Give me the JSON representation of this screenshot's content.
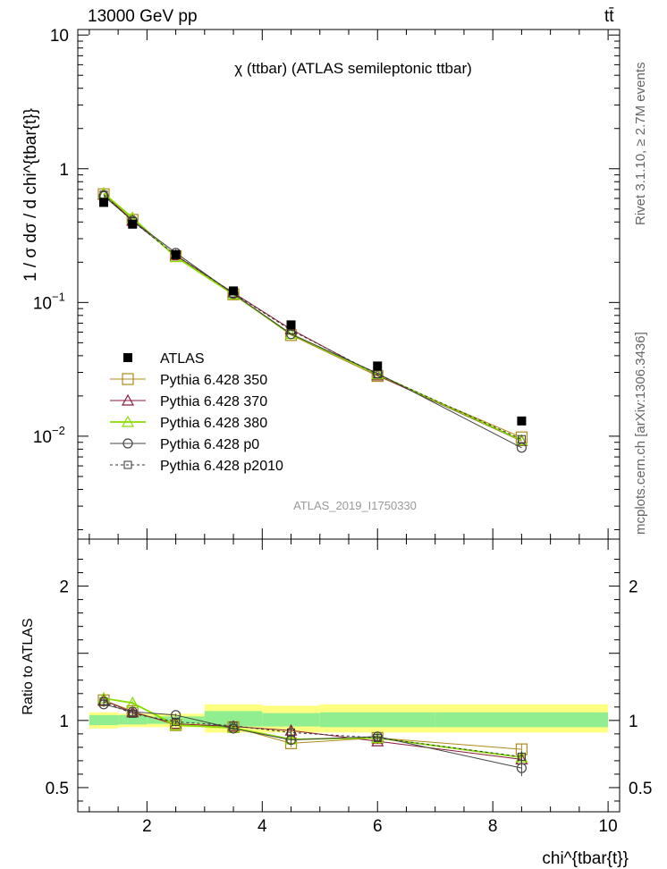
{
  "header": {
    "energy_label": "13000 GeV pp",
    "process_label": "tt̄"
  },
  "side_labels": {
    "rivet": "Rivet 3.1.10, ≥ 2.7M events",
    "mcplots": "mcplots.cern.ch [arXiv:1306.3436]"
  },
  "chart_data": [
    {
      "type": "scatter",
      "title": "χ (ttbar) (ATLAS semileptonic ttbar)",
      "watermark": "ATLAS_2019_I1750330",
      "ylabel": "1 / σ dσ / d chi^{tbar{t}}",
      "yscale": "log",
      "ylim": [
        0.0017,
        11
      ],
      "xlim": [
        0.8,
        10.2
      ],
      "yticks": [
        {
          "v": 10,
          "label": "10"
        },
        {
          "v": 1,
          "label": "1"
        },
        {
          "v": 0.1,
          "label": "10",
          "sup": "−1"
        },
        {
          "v": 0.01,
          "label": "10",
          "sup": "−2"
        }
      ],
      "legend_position": "middle-left",
      "x": [
        1.25,
        1.75,
        2.5,
        3.5,
        4.5,
        6.0,
        8.5
      ],
      "series": [
        {
          "name": "ATLAS",
          "color": "#000000",
          "marker": "square-filled",
          "values": [
            0.56,
            0.385,
            0.228,
            0.122,
            0.068,
            0.0335,
            0.013
          ]
        },
        {
          "name": "Pythia 6.428 350",
          "color": "#b08a1a",
          "marker": "square-open",
          "values": [
            0.645,
            0.415,
            0.222,
            0.115,
            0.057,
            0.0282,
            0.0098
          ]
        },
        {
          "name": "Pythia 6.428 370",
          "color": "#8b1a3a",
          "marker": "triangle-open",
          "values": [
            0.648,
            0.408,
            0.225,
            0.118,
            0.063,
            0.0285,
            0.0092
          ]
        },
        {
          "name": "Pythia 6.428 380",
          "color": "#88dd00",
          "marker": "triangle-open",
          "values": [
            0.655,
            0.43,
            0.219,
            0.115,
            0.058,
            0.029,
            0.0093
          ]
        },
        {
          "name": "Pythia 6.428 p0",
          "color": "#444444",
          "marker": "circle-open",
          "values": [
            0.625,
            0.41,
            0.235,
            0.116,
            0.058,
            0.0295,
            0.0082
          ]
        },
        {
          "name": "Pythia 6.428 p2010",
          "color": "#333333",
          "marker": "square-small-dashed",
          "values": [
            0.64,
            0.405,
            0.226,
            0.117,
            0.062,
            0.029,
            0.0095
          ]
        }
      ]
    },
    {
      "type": "scatter",
      "ylabel": "Ratio to ATLAS",
      "xlabel": "chi^{tbar{t}}",
      "ylim": [
        0.32,
        2.35
      ],
      "xlim": [
        0.8,
        10.2
      ],
      "yticks": [
        {
          "v": 2,
          "label": "2"
        },
        {
          "v": 1,
          "label": "1"
        },
        {
          "v": 0.5,
          "label": "0.5"
        }
      ],
      "xticks": [
        {
          "v": 2,
          "label": "2"
        },
        {
          "v": 4,
          "label": "4"
        },
        {
          "v": 6,
          "label": "6"
        },
        {
          "v": 8,
          "label": "8"
        },
        {
          "v": 10,
          "label": "10"
        }
      ],
      "uncertainty_bands": [
        {
          "x0": 1.0,
          "x1": 1.5,
          "stat": [
            0.965,
            1.04
          ],
          "total": [
            0.94,
            1.06
          ]
        },
        {
          "x0": 1.5,
          "x1": 2.0,
          "stat": [
            0.97,
            1.04
          ],
          "total": [
            0.95,
            1.05
          ]
        },
        {
          "x0": 2.0,
          "x1": 3.0,
          "stat": [
            0.975,
            1.03
          ],
          "total": [
            0.95,
            1.05
          ]
        },
        {
          "x0": 3.0,
          "x1": 4.0,
          "stat": [
            0.955,
            1.07
          ],
          "total": [
            0.91,
            1.12
          ]
        },
        {
          "x0": 4.0,
          "x1": 5.0,
          "stat": [
            0.955,
            1.055
          ],
          "total": [
            0.91,
            1.11
          ]
        },
        {
          "x0": 5.0,
          "x1": 7.0,
          "stat": [
            0.95,
            1.06
          ],
          "total": [
            0.91,
            1.12
          ]
        },
        {
          "x0": 7.0,
          "x1": 10.0,
          "stat": [
            0.95,
            1.06
          ],
          "total": [
            0.91,
            1.12
          ]
        }
      ],
      "x": [
        1.25,
        1.75,
        2.5,
        3.5,
        4.5,
        6.0,
        8.5
      ],
      "series": [
        {
          "name": "Pythia 6.428 350",
          "color": "#b08a1a",
          "marker": "square-open",
          "values": [
            1.15,
            1.07,
            0.965,
            0.95,
            0.83,
            0.87,
            0.785
          ],
          "errors": [
            0.02,
            0.02,
            0.01,
            0.01,
            0.03,
            0.02,
            0.04
          ]
        },
        {
          "name": "Pythia 6.428 370",
          "color": "#8b1a3a",
          "marker": "triangle-open",
          "values": [
            1.15,
            1.06,
            0.975,
            0.955,
            0.925,
            0.845,
            0.71
          ],
          "errors": [
            0.02,
            0.02,
            0.01,
            0.01,
            0.03,
            0.02,
            0.04
          ]
        },
        {
          "name": "Pythia 6.428 380",
          "color": "#88dd00",
          "marker": "triangle-open",
          "values": [
            1.165,
            1.13,
            0.965,
            0.945,
            0.86,
            0.87,
            0.725
          ],
          "errors": [
            0.02,
            0.02,
            0.01,
            0.01,
            0.03,
            0.02,
            0.04
          ]
        },
        {
          "name": "Pythia 6.428 p0",
          "color": "#444444",
          "marker": "circle-open",
          "values": [
            1.12,
            1.065,
            1.04,
            0.94,
            0.855,
            0.88,
            0.645
          ],
          "errors": [
            0.02,
            0.02,
            0.01,
            0.01,
            0.03,
            0.02,
            0.06
          ]
        },
        {
          "name": "Pythia 6.428 p2010",
          "color": "#333333",
          "marker": "square-small-dashed",
          "values": [
            1.14,
            1.05,
            0.99,
            0.96,
            0.91,
            0.87,
            0.73
          ],
          "errors": [
            0.02,
            0.02,
            0.01,
            0.01,
            0.03,
            0.02,
            0.04
          ]
        }
      ]
    }
  ]
}
